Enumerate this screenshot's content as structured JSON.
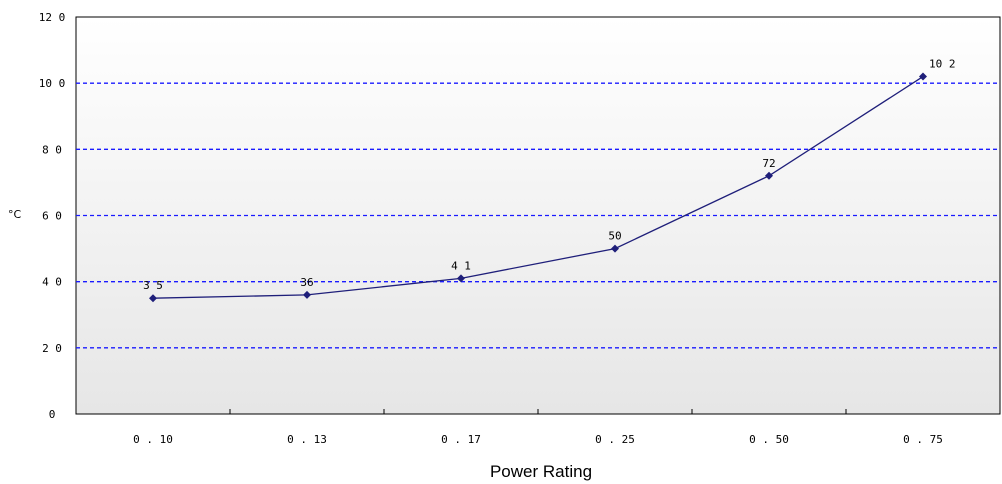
{
  "chart_data": {
    "type": "line",
    "title": "",
    "xlabel": "Power Rating",
    "ylabel": "°C",
    "ylim": [
      0,
      120
    ],
    "yticks": [
      "0",
      "2 0",
      "4 0",
      "6 0",
      "8 0",
      "10 0",
      "12 0"
    ],
    "ytick_values": [
      0,
      20,
      40,
      60,
      80,
      100,
      120
    ],
    "categories": [
      "0 . 10",
      "0 . 13",
      "0 . 17",
      "0 . 25",
      "0 . 50",
      "0 . 75"
    ],
    "series": [
      {
        "values": [
          35,
          36,
          41,
          50,
          72,
          102
        ],
        "labels": [
          "3 5",
          "36",
          "4 1",
          "50",
          "72",
          "10 2"
        ]
      }
    ],
    "grid": "horizontal-dashed",
    "legend": "none",
    "colors": {
      "line": "#1f1f7a",
      "marker": "#1f1f7a",
      "grid": "#1a1aff",
      "background_top": "#ffffff",
      "background_bottom": "#e6e6e6",
      "axis": "#000000"
    }
  }
}
